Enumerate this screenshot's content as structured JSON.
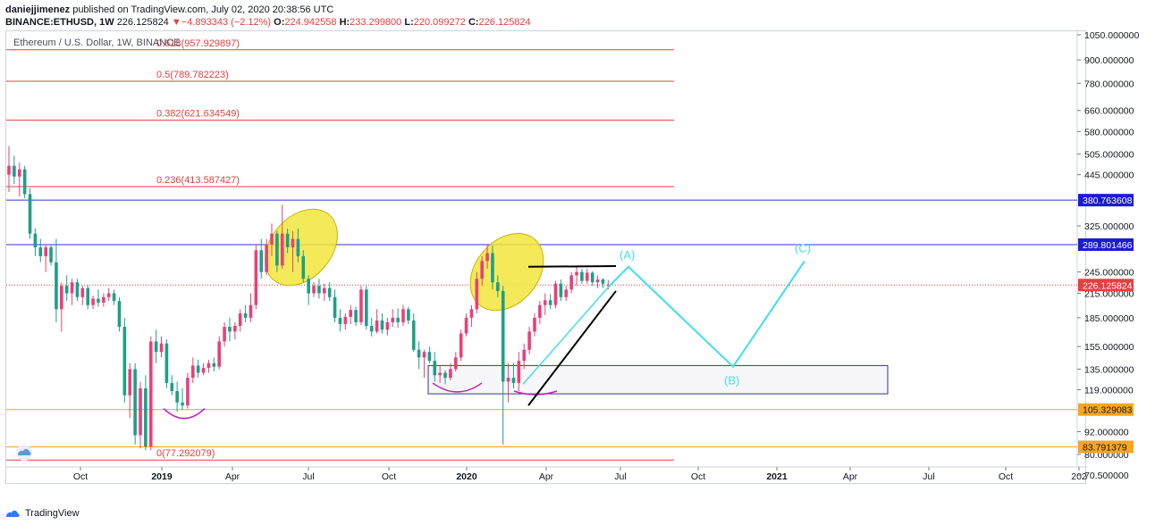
{
  "header": {
    "author": "daniejjimenez",
    "published_text": " published on TradingView.com, July 02, 2020 20:38:56 UTC",
    "symbol_line": "BINANCE:ETHUSD, 1W",
    "last_price": "226.125824",
    "change": "−4.893343 (−2.12%)",
    "open_label": "O:",
    "open": "224.942558",
    "high_label": "H:",
    "high": "233.299800",
    "low_label": "L:",
    "low": "220.099272",
    "close_label": "C:",
    "close": "226.125824"
  },
  "footer": {
    "brand": "TradingView"
  },
  "colors": {
    "up": "#e8407a",
    "down": "#1f9e8a",
    "fib": "#e2413f",
    "level_blue": "#3333cc",
    "level_orange": "#f5a623",
    "cyan": "#40e0e8",
    "ellipse": "#f2e63c",
    "arc": "#c020c0",
    "box": "#2a3a8a",
    "trend": "#000000",
    "axis_label_blue": "#1b1bd6",
    "axis_label_orange": "#f5a623",
    "axis_label_red": "#e2413f"
  },
  "chart_data": {
    "type": "candlestick",
    "title": "Ethereum / U.S. Dollar, 1W, BINANCE",
    "y_scale": "log",
    "ylim": [
      68,
      1080
    ],
    "y_ticks": [
      "1050.000000",
      "900.000000",
      "780.000000",
      "660.000000",
      "580.000000",
      "505.000000",
      "445.000000",
      "325.000000",
      "245.000000",
      "215.000000",
      "185.000000",
      "155.000000",
      "135.000000",
      "119.000000",
      "92.000000",
      "80.000000",
      "70.500000"
    ],
    "x_ticks": [
      "Oct",
      "2019",
      "Apr",
      "Jul",
      "Oct",
      "2020",
      "Apr",
      "Jul",
      "Oct",
      "2021",
      "Apr",
      "Jul",
      "Oct",
      "202"
    ],
    "price_labels": [
      {
        "value": 380.763608,
        "text": "380.763608",
        "kind": "blue"
      },
      {
        "value": 289.801466,
        "text": "289.801466",
        "kind": "blue"
      },
      {
        "value": 226.125824,
        "text": "226.125824",
        "kind": "red"
      },
      {
        "value": 105.329083,
        "text": "105.329083",
        "kind": "orange"
      },
      {
        "value": 83.791379,
        "text": "83.791379",
        "kind": "orange"
      }
    ],
    "fib_levels": [
      {
        "ratio": "0.618",
        "value": 957.929897,
        "label": "0.618(957.929897)"
      },
      {
        "ratio": "0.5",
        "value": 789.782223,
        "label": "0.5(789.782223)"
      },
      {
        "ratio": "0.382",
        "value": 621.634549,
        "label": "0.382(621.634549)"
      },
      {
        "ratio": "0.236",
        "value": 413.587427,
        "label": "0.236(413.587427)"
      },
      {
        "ratio": "0",
        "value": 77.292079,
        "label": "0(77.292079)"
      }
    ],
    "horizontal_levels": [
      380.763608,
      289.801466,
      105.329083,
      83.791379
    ],
    "current_price": 226.125824,
    "wave_labels": [
      "(A)",
      "(B)",
      "(C)"
    ],
    "candles": [
      {
        "o": 445,
        "h": 530,
        "l": 400,
        "c": 470
      },
      {
        "o": 470,
        "h": 500,
        "l": 420,
        "c": 440
      },
      {
        "o": 440,
        "h": 480,
        "l": 390,
        "c": 460
      },
      {
        "o": 460,
        "h": 470,
        "l": 385,
        "c": 395
      },
      {
        "o": 395,
        "h": 410,
        "l": 300,
        "c": 310
      },
      {
        "o": 310,
        "h": 320,
        "l": 270,
        "c": 285
      },
      {
        "o": 285,
        "h": 300,
        "l": 260,
        "c": 270
      },
      {
        "o": 270,
        "h": 290,
        "l": 245,
        "c": 285
      },
      {
        "o": 285,
        "h": 290,
        "l": 255,
        "c": 260
      },
      {
        "o": 260,
        "h": 300,
        "l": 180,
        "c": 195
      },
      {
        "o": 195,
        "h": 230,
        "l": 170,
        "c": 225
      },
      {
        "o": 225,
        "h": 240,
        "l": 205,
        "c": 215
      },
      {
        "o": 215,
        "h": 235,
        "l": 200,
        "c": 230
      },
      {
        "o": 230,
        "h": 235,
        "l": 205,
        "c": 210
      },
      {
        "o": 210,
        "h": 225,
        "l": 200,
        "c": 222
      },
      {
        "o": 222,
        "h": 226,
        "l": 195,
        "c": 200
      },
      {
        "o": 200,
        "h": 212,
        "l": 195,
        "c": 208
      },
      {
        "o": 208,
        "h": 220,
        "l": 198,
        "c": 203
      },
      {
        "o": 203,
        "h": 215,
        "l": 198,
        "c": 210
      },
      {
        "o": 210,
        "h": 222,
        "l": 205,
        "c": 215
      },
      {
        "o": 215,
        "h": 220,
        "l": 200,
        "c": 205
      },
      {
        "o": 205,
        "h": 210,
        "l": 170,
        "c": 175
      },
      {
        "o": 175,
        "h": 185,
        "l": 110,
        "c": 115
      },
      {
        "o": 115,
        "h": 140,
        "l": 100,
        "c": 135
      },
      {
        "o": 135,
        "h": 140,
        "l": 85,
        "c": 90
      },
      {
        "o": 90,
        "h": 125,
        "l": 83,
        "c": 120
      },
      {
        "o": 120,
        "h": 130,
        "l": 82,
        "c": 84
      },
      {
        "o": 84,
        "h": 165,
        "l": 82,
        "c": 160
      },
      {
        "o": 160,
        "h": 172,
        "l": 140,
        "c": 150
      },
      {
        "o": 150,
        "h": 165,
        "l": 145,
        "c": 158
      },
      {
        "o": 158,
        "h": 162,
        "l": 120,
        "c": 124
      },
      {
        "o": 124,
        "h": 130,
        "l": 115,
        "c": 118
      },
      {
        "o": 118,
        "h": 125,
        "l": 104,
        "c": 110
      },
      {
        "o": 110,
        "h": 120,
        "l": 105,
        "c": 108
      },
      {
        "o": 108,
        "h": 132,
        "l": 106,
        "c": 128
      },
      {
        "o": 128,
        "h": 145,
        "l": 124,
        "c": 138
      },
      {
        "o": 138,
        "h": 143,
        "l": 128,
        "c": 132
      },
      {
        "o": 132,
        "h": 140,
        "l": 130,
        "c": 136
      },
      {
        "o": 136,
        "h": 143,
        "l": 132,
        "c": 140
      },
      {
        "o": 140,
        "h": 145,
        "l": 133,
        "c": 137
      },
      {
        "o": 137,
        "h": 165,
        "l": 135,
        "c": 160
      },
      {
        "o": 160,
        "h": 180,
        "l": 155,
        "c": 175
      },
      {
        "o": 175,
        "h": 185,
        "l": 160,
        "c": 170
      },
      {
        "o": 170,
        "h": 180,
        "l": 162,
        "c": 176
      },
      {
        "o": 176,
        "h": 195,
        "l": 170,
        "c": 190
      },
      {
        "o": 190,
        "h": 200,
        "l": 180,
        "c": 185
      },
      {
        "o": 185,
        "h": 215,
        "l": 180,
        "c": 200
      },
      {
        "o": 200,
        "h": 290,
        "l": 195,
        "c": 280
      },
      {
        "o": 280,
        "h": 300,
        "l": 235,
        "c": 245
      },
      {
        "o": 245,
        "h": 300,
        "l": 240,
        "c": 290
      },
      {
        "o": 290,
        "h": 330,
        "l": 270,
        "c": 310
      },
      {
        "o": 310,
        "h": 315,
        "l": 245,
        "c": 255
      },
      {
        "o": 255,
        "h": 370,
        "l": 250,
        "c": 310
      },
      {
        "o": 310,
        "h": 320,
        "l": 275,
        "c": 285
      },
      {
        "o": 285,
        "h": 315,
        "l": 245,
        "c": 300
      },
      {
        "o": 300,
        "h": 320,
        "l": 260,
        "c": 270
      },
      {
        "o": 270,
        "h": 280,
        "l": 230,
        "c": 235
      },
      {
        "o": 235,
        "h": 240,
        "l": 200,
        "c": 215
      },
      {
        "o": 215,
        "h": 230,
        "l": 210,
        "c": 225
      },
      {
        "o": 225,
        "h": 235,
        "l": 208,
        "c": 215
      },
      {
        "o": 215,
        "h": 228,
        "l": 205,
        "c": 222
      },
      {
        "o": 222,
        "h": 230,
        "l": 205,
        "c": 210
      },
      {
        "o": 210,
        "h": 220,
        "l": 180,
        "c": 185
      },
      {
        "o": 185,
        "h": 195,
        "l": 170,
        "c": 178
      },
      {
        "o": 178,
        "h": 190,
        "l": 172,
        "c": 186
      },
      {
        "o": 186,
        "h": 200,
        "l": 178,
        "c": 194
      },
      {
        "o": 194,
        "h": 198,
        "l": 176,
        "c": 180
      },
      {
        "o": 180,
        "h": 225,
        "l": 177,
        "c": 220
      },
      {
        "o": 220,
        "h": 225,
        "l": 172,
        "c": 176
      },
      {
        "o": 176,
        "h": 185,
        "l": 165,
        "c": 170
      },
      {
        "o": 170,
        "h": 195,
        "l": 168,
        "c": 182
      },
      {
        "o": 182,
        "h": 190,
        "l": 168,
        "c": 172
      },
      {
        "o": 172,
        "h": 185,
        "l": 166,
        "c": 180
      },
      {
        "o": 180,
        "h": 195,
        "l": 175,
        "c": 185
      },
      {
        "o": 185,
        "h": 196,
        "l": 174,
        "c": 180
      },
      {
        "o": 180,
        "h": 200,
        "l": 176,
        "c": 195
      },
      {
        "o": 195,
        "h": 198,
        "l": 178,
        "c": 182
      },
      {
        "o": 182,
        "h": 190,
        "l": 150,
        "c": 152
      },
      {
        "o": 152,
        "h": 160,
        "l": 135,
        "c": 145
      },
      {
        "o": 145,
        "h": 152,
        "l": 128,
        "c": 150
      },
      {
        "o": 150,
        "h": 155,
        "l": 140,
        "c": 142
      },
      {
        "o": 142,
        "h": 150,
        "l": 125,
        "c": 130
      },
      {
        "o": 130,
        "h": 138,
        "l": 124,
        "c": 132
      },
      {
        "o": 132,
        "h": 134,
        "l": 123,
        "c": 128
      },
      {
        "o": 128,
        "h": 140,
        "l": 126,
        "c": 135
      },
      {
        "o": 135,
        "h": 150,
        "l": 133,
        "c": 145
      },
      {
        "o": 145,
        "h": 172,
        "l": 142,
        "c": 168
      },
      {
        "o": 168,
        "h": 190,
        "l": 165,
        "c": 185
      },
      {
        "o": 185,
        "h": 200,
        "l": 175,
        "c": 195
      },
      {
        "o": 195,
        "h": 245,
        "l": 190,
        "c": 235
      },
      {
        "o": 235,
        "h": 270,
        "l": 225,
        "c": 262
      },
      {
        "o": 262,
        "h": 290,
        "l": 250,
        "c": 275
      },
      {
        "o": 275,
        "h": 288,
        "l": 220,
        "c": 230
      },
      {
        "o": 230,
        "h": 240,
        "l": 210,
        "c": 218
      },
      {
        "o": 218,
        "h": 225,
        "l": 85,
        "c": 125
      },
      {
        "o": 125,
        "h": 140,
        "l": 110,
        "c": 128
      },
      {
        "o": 128,
        "h": 140,
        "l": 120,
        "c": 124
      },
      {
        "o": 124,
        "h": 150,
        "l": 118,
        "c": 142
      },
      {
        "o": 142,
        "h": 158,
        "l": 135,
        "c": 152
      },
      {
        "o": 152,
        "h": 175,
        "l": 148,
        "c": 170
      },
      {
        "o": 170,
        "h": 190,
        "l": 165,
        "c": 185
      },
      {
        "o": 185,
        "h": 205,
        "l": 178,
        "c": 200
      },
      {
        "o": 200,
        "h": 215,
        "l": 188,
        "c": 206
      },
      {
        "o": 206,
        "h": 214,
        "l": 195,
        "c": 200
      },
      {
        "o": 200,
        "h": 232,
        "l": 196,
        "c": 228
      },
      {
        "o": 228,
        "h": 234,
        "l": 205,
        "c": 210
      },
      {
        "o": 210,
        "h": 225,
        "l": 205,
        "c": 220
      },
      {
        "o": 220,
        "h": 245,
        "l": 215,
        "c": 240
      },
      {
        "o": 240,
        "h": 255,
        "l": 225,
        "c": 245
      },
      {
        "o": 245,
        "h": 250,
        "l": 228,
        "c": 232
      },
      {
        "o": 232,
        "h": 250,
        "l": 228,
        "c": 244
      },
      {
        "o": 244,
        "h": 246,
        "l": 225,
        "c": 230
      },
      {
        "o": 230,
        "h": 240,
        "l": 222,
        "c": 234
      },
      {
        "o": 234,
        "h": 236,
        "l": 222,
        "c": 228
      },
      {
        "o": 224.94,
        "h": 233.3,
        "l": 220.1,
        "c": 226.13
      }
    ]
  }
}
